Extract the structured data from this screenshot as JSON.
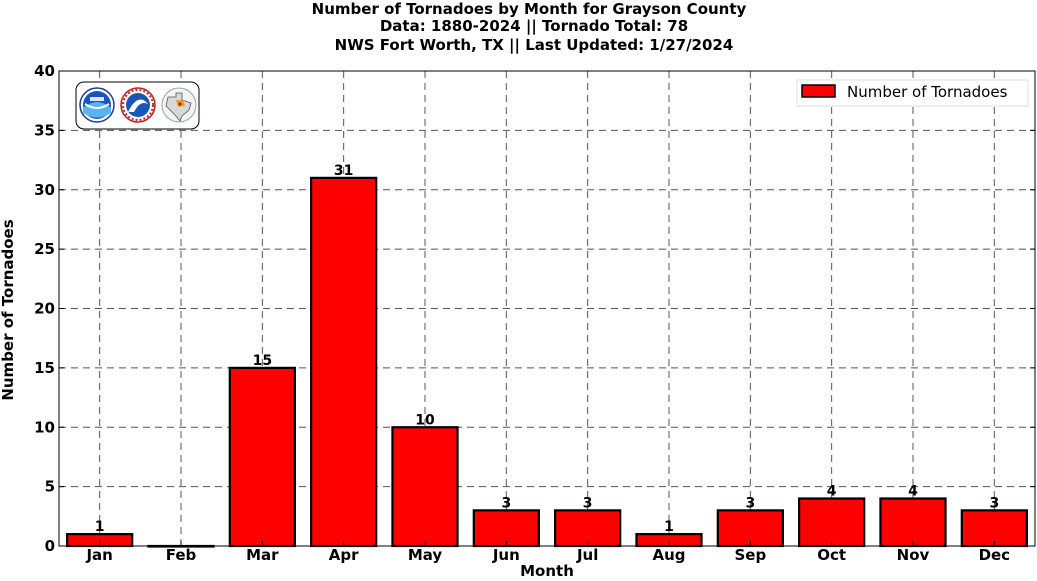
{
  "title_lines": [
    "Number of Tornadoes by Month for Grayson County",
    "Data: 1880-2024 || Tornado Total: 78",
    "NWS Fort Worth, TX || Last Updated: 1/27/2024"
  ],
  "logos": [
    "noaa-logo",
    "national-weather-service-logo",
    "texas-map-logo"
  ],
  "chart_data": {
    "type": "bar",
    "categories": [
      "Jan",
      "Feb",
      "Mar",
      "Apr",
      "May",
      "Jun",
      "Jul",
      "Aug",
      "Sep",
      "Oct",
      "Nov",
      "Dec"
    ],
    "series": [
      {
        "name": "Number of Tornadoes",
        "values": [
          1,
          0,
          15,
          31,
          10,
          3,
          3,
          1,
          3,
          4,
          4,
          3
        ],
        "color": "#ff0000"
      }
    ],
    "data_labels": [
      "1",
      "",
      "15",
      "31",
      "10",
      "3",
      "3",
      "1",
      "3",
      "4",
      "4",
      "3"
    ],
    "xlabel": "Month",
    "ylabel": "Number of Tornadoes",
    "ylim": [
      0,
      40
    ],
    "yticks": [
      0,
      5,
      10,
      15,
      20,
      25,
      30,
      35,
      40
    ],
    "grid": true,
    "legend_position": "top-right"
  }
}
